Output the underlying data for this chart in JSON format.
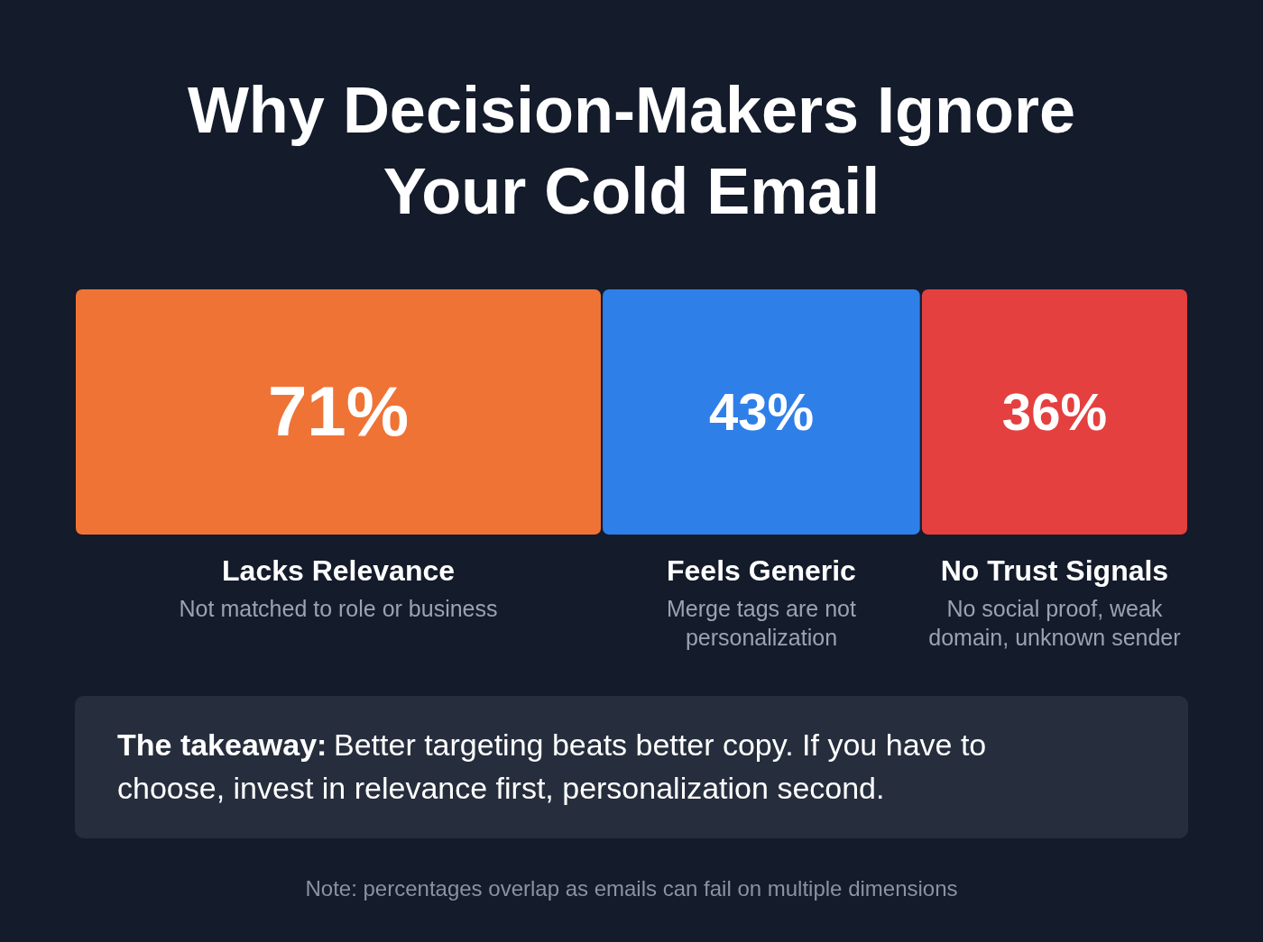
{
  "chart_data": {
    "type": "bar",
    "orientation": "horizontal",
    "stacked": true,
    "title": "Why Decision-Makers Ignore Your Cold Email",
    "categories": [
      null
    ],
    "series": [
      {
        "name": "Lacks Relevance",
        "color": "#f07336",
        "values": [
          71
        ],
        "value_labels": [
          "71%"
        ]
      },
      {
        "name": "Feels Generic",
        "color": "#2f7fe8",
        "values": [
          43
        ],
        "value_labels": [
          "43%"
        ]
      },
      {
        "name": "No Trust Signals",
        "color": "#e4403f",
        "values": [
          36
        ],
        "value_labels": [
          "36%"
        ]
      }
    ],
    "tick_labels": false,
    "annotations": [
      "Not matched to role or business",
      "Merge tags are not personalization",
      "No social proof, weak domain, unknown sender",
      "The takeaway:",
      "Better targeting beats better copy. If you have to choose, invest in relevance first, personalization second.",
      "Note: percentages overlap as emails can fail on multiple dimensions"
    ]
  }
}
